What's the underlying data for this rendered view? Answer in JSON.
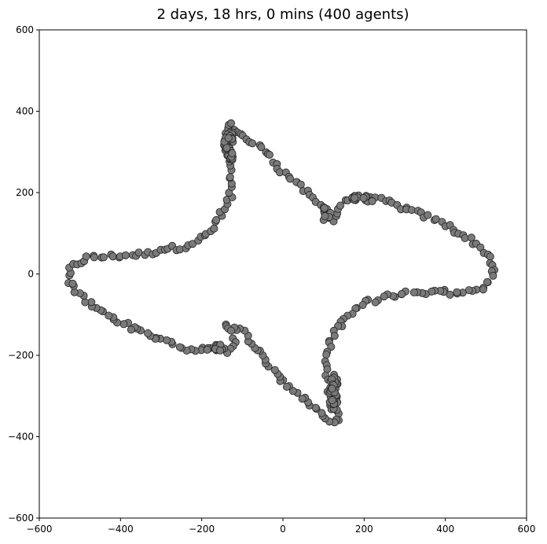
{
  "chart_data": {
    "type": "scatter",
    "title": "2 days, 18 hrs, 0 mins (400 agents)",
    "xlabel": "",
    "ylabel": "",
    "xlim": [
      -600,
      600
    ],
    "ylim": [
      -600,
      600
    ],
    "grid": false,
    "x_ticks": [
      -600,
      -400,
      -200,
      0,
      200,
      400,
      600
    ],
    "y_ticks": [
      600,
      400,
      200,
      0,
      -200,
      -400,
      -600
    ],
    "x_tick_labels": [
      "−600",
      "−400",
      "−200",
      "0",
      "200",
      "400",
      "600"
    ],
    "y_tick_labels": [
      "600",
      "400",
      "200",
      "0",
      "−200",
      "−400",
      "−600"
    ],
    "marker_color": "#7a7a7a",
    "marker_edge_color": "#222222",
    "outline": [
      [
        -530,
        -20
      ],
      [
        -520,
        20
      ],
      [
        -480,
        40
      ],
      [
        -400,
        45
      ],
      [
        -330,
        50
      ],
      [
        -300,
        62
      ],
      [
        -250,
        65
      ],
      [
        -220,
        78
      ],
      [
        -180,
        100
      ],
      [
        -150,
        150
      ],
      [
        -130,
        190
      ],
      [
        -125,
        240
      ],
      [
        -130,
        290
      ],
      [
        -140,
        330
      ],
      [
        -135,
        370
      ],
      [
        -100,
        340
      ],
      [
        -70,
        320
      ],
      [
        -30,
        290
      ],
      [
        0,
        250
      ],
      [
        40,
        220
      ],
      [
        80,
        180
      ],
      [
        110,
        150
      ],
      [
        125,
        130
      ],
      [
        140,
        170
      ],
      [
        170,
        190
      ],
      [
        250,
        180
      ],
      [
        300,
        160
      ],
      [
        360,
        140
      ],
      [
        420,
        110
      ],
      [
        470,
        80
      ],
      [
        510,
        40
      ],
      [
        520,
        0
      ],
      [
        490,
        -40
      ],
      [
        420,
        -45
      ],
      [
        300,
        -45
      ],
      [
        240,
        -60
      ],
      [
        190,
        -75
      ],
      [
        150,
        -110
      ],
      [
        120,
        -160
      ],
      [
        110,
        -200
      ],
      [
        110,
        -260
      ],
      [
        120,
        -310
      ],
      [
        140,
        -350
      ],
      [
        125,
        -370
      ],
      [
        90,
        -340
      ],
      [
        50,
        -310
      ],
      [
        10,
        -270
      ],
      [
        -30,
        -230
      ],
      [
        -70,
        -180
      ],
      [
        -100,
        -140
      ],
      [
        -140,
        -120
      ],
      [
        -120,
        -160
      ],
      [
        -130,
        -190
      ],
      [
        -180,
        -185
      ],
      [
        -230,
        -185
      ],
      [
        -280,
        -170
      ],
      [
        -330,
        -150
      ],
      [
        -380,
        -130
      ],
      [
        -430,
        -100
      ],
      [
        -480,
        -70
      ],
      [
        -530,
        -20
      ]
    ],
    "clusters": [
      {
        "x": -135,
        "y": 315,
        "n": 38,
        "sx": 12,
        "sy": 35
      },
      {
        "x": 125,
        "y": -290,
        "n": 34,
        "sx": 10,
        "sy": 45
      },
      {
        "x": 200,
        "y": 185,
        "n": 14,
        "sx": 25,
        "sy": 8
      },
      {
        "x": -165,
        "y": -180,
        "n": 12,
        "sx": 22,
        "sy": 8
      },
      {
        "x": 110,
        "y": 150,
        "n": 8,
        "sx": 10,
        "sy": 20
      }
    ],
    "agent_count": 400
  }
}
